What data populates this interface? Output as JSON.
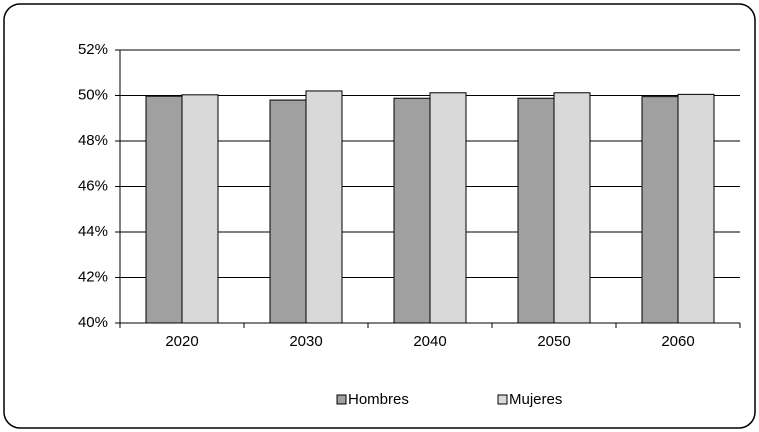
{
  "chart_data": {
    "type": "bar",
    "categories": [
      "2020",
      "2030",
      "2040",
      "2050",
      "2060"
    ],
    "series": [
      {
        "name": "Hombres",
        "color": "#a0a0a0",
        "values": [
          49.97,
          49.8,
          49.88,
          49.88,
          49.95
        ]
      },
      {
        "name": "Mujeres",
        "color": "#d9d9d9",
        "values": [
          50.03,
          50.2,
          50.12,
          50.12,
          50.05
        ]
      }
    ],
    "ylim": [
      40,
      52
    ],
    "yticks": [
      {
        "value": 40,
        "label": "40%"
      },
      {
        "value": 42,
        "label": "42%"
      },
      {
        "value": 44,
        "label": "44%"
      },
      {
        "value": 46,
        "label": "46%"
      },
      {
        "value": 48,
        "label": "48%"
      },
      {
        "value": 50,
        "label": "50%"
      },
      {
        "value": 52,
        "label": "52%"
      }
    ],
    "grid": true,
    "legend": "bottom"
  }
}
